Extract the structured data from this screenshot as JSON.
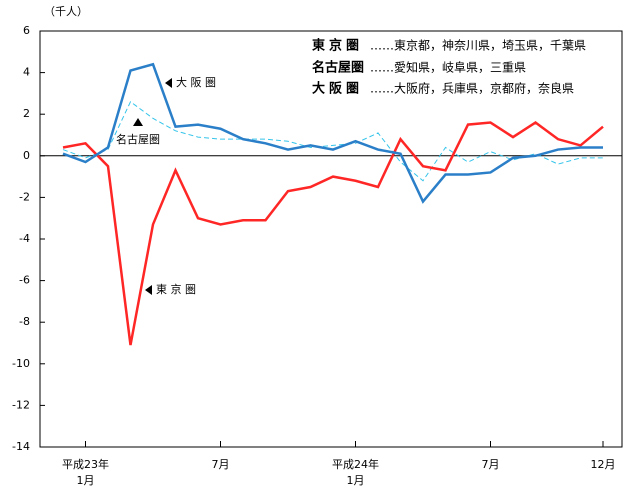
{
  "chart_data": {
    "type": "line",
    "y_unit": "（千人）",
    "categories": [
      null,
      "平成23年\n1月",
      null,
      null,
      null,
      null,
      null,
      "7月",
      null,
      null,
      null,
      null,
      null,
      "平成24年\n1月",
      null,
      null,
      null,
      null,
      null,
      "7月",
      null,
      null,
      null,
      null,
      "12月"
    ],
    "ylim": [
      -14,
      6
    ],
    "yticks": [
      -14,
      -12,
      -10,
      -8,
      -6,
      -4,
      -2,
      0,
      2,
      4,
      6
    ],
    "series": [
      {
        "name": "東京圏",
        "members": "……東京都，神奈川県，埼玉県，千葉県",
        "label": "東 京 圏",
        "color": "#ff2626",
        "values": [
          0.4,
          0.6,
          -0.5,
          -9.1,
          -3.3,
          -0.7,
          -3.0,
          -3.3,
          -3.1,
          -3.1,
          -1.7,
          -1.5,
          -1.0,
          -1.2,
          -1.5,
          0.8,
          -0.5,
          -0.7,
          1.5,
          1.6,
          0.9,
          1.6,
          0.8,
          0.5,
          1.4
        ]
      },
      {
        "name": "名古屋圏",
        "members": "……愛知県，岐阜県，三重県",
        "label": "名古屋圏",
        "color": "#33c4ea",
        "dashed": true,
        "values": [
          0.3,
          -0.1,
          0.3,
          2.6,
          1.8,
          1.2,
          0.9,
          0.8,
          0.8,
          0.8,
          0.7,
          0.4,
          0.5,
          0.6,
          1.1,
          -0.3,
          -1.2,
          0.4,
          -0.3,
          0.2,
          -0.2,
          0.1,
          -0.4,
          -0.1,
          -0.1
        ]
      },
      {
        "name": "大阪圏",
        "members": "……大阪府，兵庫県，京都府，奈良県",
        "label": "大 阪 圏",
        "color": "#2a7fc8",
        "values": [
          0.1,
          -0.3,
          0.4,
          4.1,
          4.4,
          1.4,
          1.5,
          1.3,
          0.8,
          0.6,
          0.3,
          0.5,
          0.3,
          0.7,
          0.3,
          0.1,
          -2.2,
          -0.9,
          -0.9,
          -0.8,
          -0.1,
          0.0,
          0.3,
          0.4,
          0.4
        ]
      }
    ]
  }
}
